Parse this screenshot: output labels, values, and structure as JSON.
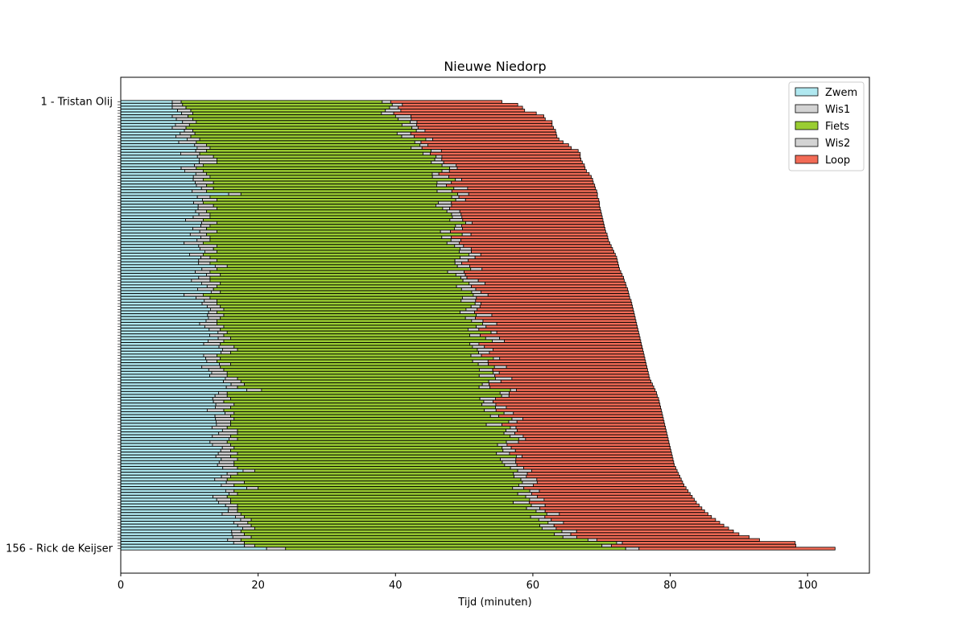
{
  "chart_data": {
    "type": "bar",
    "orientation": "horizontal",
    "stacked": true,
    "title": "Nieuwe Niedorp",
    "xlabel": "Tijd (minuten)",
    "ylabel": "",
    "xlim": [
      0,
      109
    ],
    "x_ticks": [
      0,
      20,
      40,
      60,
      80,
      100
    ],
    "grid": false,
    "legend_position": "top-right",
    "segment_order": [
      "Zwem",
      "Wis1",
      "Fiets",
      "Wis2",
      "Loop"
    ],
    "series": [
      {
        "name": "Zwem",
        "color": "#b0e8f0"
      },
      {
        "name": "Wis1",
        "color": "#d3d3d3"
      },
      {
        "name": "Fiets",
        "color": "#9acd32"
      },
      {
        "name": "Wis2",
        "color": "#d3d3d3"
      },
      {
        "name": "Loop",
        "color": "#f26b56"
      }
    ],
    "readable_labels": [
      {
        "index": 0,
        "label": "1 - Tristan Olij"
      },
      {
        "index": 155,
        "label": "156 - Rick de Keijser"
      }
    ],
    "total_athletes": 156,
    "totals": [
      55.5,
      57.8,
      58.5,
      58.8,
      60.5,
      61.6,
      61.8,
      62.8,
      62.8,
      63.0,
      63.3,
      63.4,
      63.5,
      63.8,
      64.4,
      65.2,
      65.6,
      66.6,
      66.9,
      66.9,
      67.0,
      67.2,
      67.5,
      67.6,
      67.8,
      68.2,
      68.5,
      68.7,
      68.8,
      69.0,
      69.1,
      69.3,
      69.4,
      69.4,
      69.6,
      69.7,
      69.7,
      69.8,
      69.9,
      70.0,
      70.1,
      70.2,
      70.3,
      70.4,
      70.5,
      70.6,
      70.8,
      70.9,
      71.0,
      71.2,
      71.4,
      71.6,
      71.8,
      72.0,
      72.2,
      72.3,
      72.4,
      72.5,
      72.6,
      72.8,
      73.0,
      73.2,
      73.3,
      73.5,
      73.6,
      73.8,
      73.9,
      74.0,
      74.1,
      74.3,
      74.4,
      74.5,
      74.6,
      74.7,
      74.8,
      74.9,
      75.0,
      75.1,
      75.2,
      75.3,
      75.4,
      75.5,
      75.6,
      75.7,
      75.8,
      75.9,
      76.0,
      76.1,
      76.2,
      76.3,
      76.4,
      76.5,
      76.6,
      76.7,
      76.8,
      76.9,
      77.0,
      77.2,
      77.4,
      77.6,
      77.8,
      78.0,
      78.1,
      78.3,
      78.4,
      78.5,
      78.6,
      78.7,
      78.8,
      78.9,
      79.0,
      79.1,
      79.2,
      79.3,
      79.4,
      79.5,
      79.6,
      79.7,
      79.8,
      79.9,
      80.0,
      80.1,
      80.2,
      80.3,
      80.4,
      80.5,
      80.6,
      80.8,
      81.0,
      81.2,
      81.4,
      81.6,
      81.8,
      82.0,
      82.3,
      82.6,
      82.9,
      83.2,
      83.5,
      83.8,
      84.2,
      84.6,
      85.0,
      85.5,
      86.0,
      86.6,
      87.2,
      87.8,
      88.5,
      89.2,
      90.0,
      91.5,
      93.0,
      98.2,
      98.3,
      104.0
    ],
    "wis1_end": [
      8.8,
      9.0,
      9.5,
      10.2,
      10.5,
      9.8,
      10.5,
      11.0,
      10.0,
      9.5,
      10.5,
      10.8,
      10.2,
      11.5,
      11.0,
      12.5,
      13.0,
      12.5,
      11.5,
      13.5,
      14.0,
      14.0,
      12.0,
      11.0,
      12.0,
      12.5,
      13.0,
      12.0,
      13.5,
      12.5,
      13.5,
      12.5,
      17.5,
      13.0,
      14.0,
      12.0,
      13.5,
      14.0,
      12.5,
      13.0,
      13.0,
      12.0,
      14.0,
      13.0,
      12.5,
      14.0,
      12.5,
      13.0,
      13.0,
      12.0,
      14.0,
      13.5,
      14.0,
      12.0,
      13.0,
      14.0,
      13.0,
      15.5,
      14.0,
      13.0,
      14.5,
      13.0,
      13.0,
      14.5,
      14.0,
      13.5,
      14.5,
      12.0,
      13.0,
      14.0,
      14.0,
      14.5,
      15.0,
      14.0,
      15.0,
      14.5,
      14.0,
      14.0,
      15.0,
      14.5,
      15.5,
      15.0,
      16.0,
      15.0,
      14.5,
      16.5,
      17.0,
      16.0,
      14.0,
      14.5,
      14.0,
      16.0,
      14.5,
      15.0,
      15.5,
      15.5,
      17.0,
      17.5,
      18.0,
      17.0,
      20.5,
      15.5,
      15.5,
      16.0,
      15.0,
      16.5,
      16.0,
      15.0,
      16.5,
      16.0,
      16.5,
      16.0,
      16.0,
      15.5,
      17.0,
      17.0,
      16.0,
      17.0,
      15.5,
      16.0,
      16.5,
      16.0,
      17.0,
      16.0,
      17.0,
      16.5,
      16.5,
      17.0,
      19.5,
      17.0,
      16.0,
      15.5,
      18.0,
      16.5,
      20.0,
      16.5,
      17.0,
      15.5,
      16.0,
      16.0,
      17.0,
      17.0,
      17.0,
      17.5,
      18.0,
      19.0,
      18.5,
      19.0,
      19.5,
      17.5,
      18.0,
      19.0,
      17.5,
      18.0,
      19.5,
      24.0
    ]
  }
}
